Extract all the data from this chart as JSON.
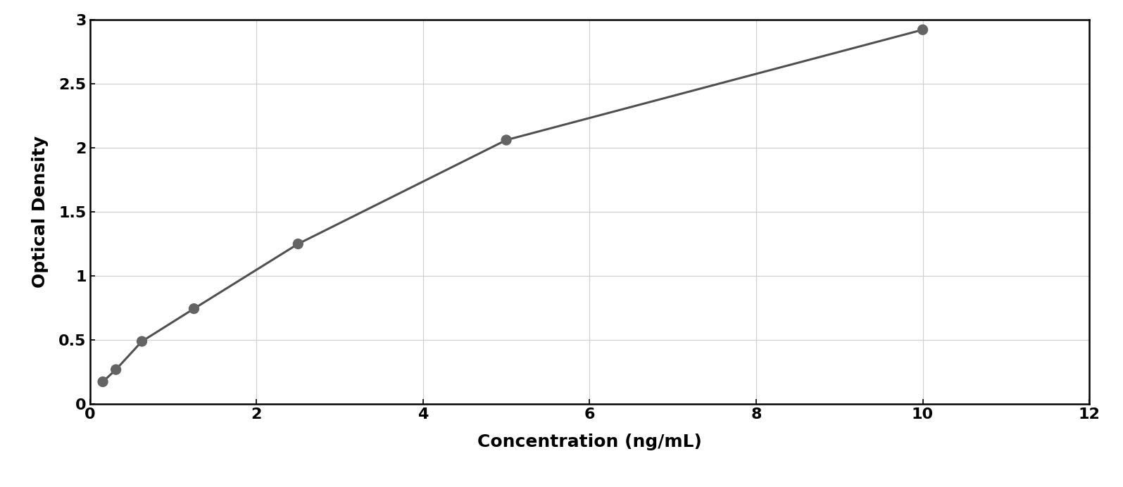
{
  "x_data": [
    0.156,
    0.313,
    0.625,
    1.25,
    2.5,
    5.0,
    10.0
  ],
  "y_data": [
    0.175,
    0.27,
    0.49,
    0.745,
    1.25,
    2.06,
    2.92
  ],
  "xlabel": "Concentration (ng/mL)",
  "ylabel": "Optical Density",
  "xlim": [
    0,
    12
  ],
  "ylim": [
    0,
    3.0
  ],
  "xticks": [
    0,
    2,
    4,
    6,
    8,
    10,
    12
  ],
  "yticks": [
    0,
    0.5,
    1.0,
    1.5,
    2.0,
    2.5,
    3.0
  ],
  "marker_color": "#646464",
  "line_color": "#505050",
  "grid_color": "#d0d0d0",
  "bg_color": "#ffffff",
  "outer_bg": "#ffffff",
  "marker_size": 11,
  "line_width": 2.2,
  "xlabel_fontsize": 18,
  "ylabel_fontsize": 18,
  "tick_fontsize": 16,
  "xlabel_fontweight": "bold",
  "ylabel_fontweight": "bold"
}
